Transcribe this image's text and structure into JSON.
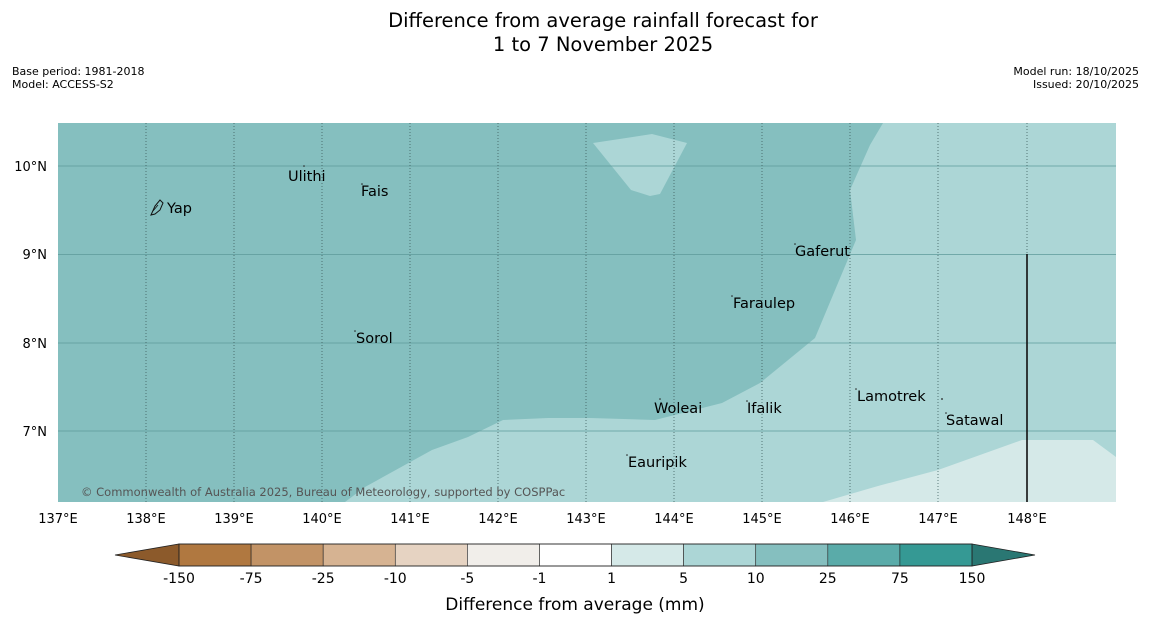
{
  "title": {
    "line1": "Difference from average rainfall forecast for",
    "line2": "1 to 7 November 2025"
  },
  "meta_left": {
    "base_period": "Base period: 1981-2018",
    "model": "Model: ACCESS-S2"
  },
  "meta_right": {
    "model_run": "Model run: 18/10/2025",
    "issued": "Issued: 20/10/2025"
  },
  "map": {
    "lon_labels": [
      "137°E",
      "138°E",
      "139°E",
      "140°E",
      "141°E",
      "142°E",
      "143°E",
      "144°E",
      "145°E",
      "146°E",
      "147°E",
      "148°E"
    ],
    "lat_labels": [
      "10°N",
      "9°N",
      "8°N",
      "7°N"
    ],
    "places": [
      {
        "name": "Yap",
        "lon": 138.2,
        "lat": 9.5
      },
      {
        "name": "Ulithi",
        "lon": 139.8,
        "lat": 9.95
      },
      {
        "name": "Fais",
        "lon": 140.5,
        "lat": 9.75
      },
      {
        "name": "Gaferut",
        "lon": 145.4,
        "lat": 9.1
      },
      {
        "name": "Faraulep",
        "lon": 144.8,
        "lat": 8.5
      },
      {
        "name": "Sorol",
        "lon": 140.4,
        "lat": 8.1
      },
      {
        "name": "Woleai",
        "lon": 143.9,
        "lat": 7.35
      },
      {
        "name": "Ifalik",
        "lon": 144.8,
        "lat": 7.3
      },
      {
        "name": "Lamotrek",
        "lon": 146.2,
        "lat": 7.45
      },
      {
        "name": "Satawal",
        "lon": 147.1,
        "lat": 7.2
      },
      {
        "name": "Eauripik",
        "lon": 143.5,
        "lat": 6.7
      }
    ],
    "copyright": "© Commonwealth of Australia 2025, Bureau of Meteorology, supported by COSPPac"
  },
  "colorbar": {
    "tick_labels": [
      "-150",
      "-75",
      "-25",
      "-10",
      "-5",
      "-1",
      "1",
      "5",
      "10",
      "25",
      "75",
      "150"
    ],
    "label": "Difference from average (mm)",
    "colors": [
      "#8c5a2b",
      "#b07840",
      "#c29366",
      "#d6b392",
      "#e6d3c2",
      "#f1eeea",
      "#ffffff",
      "#d5e9e8",
      "#acd6d6",
      "#85bfbf",
      "#5aaba9",
      "#359994",
      "#2a7773"
    ]
  }
}
